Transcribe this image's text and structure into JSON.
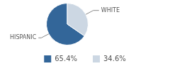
{
  "chart_data": {
    "type": "pie",
    "categories": [
      "HISPANIC",
      "WHITE"
    ],
    "values": [
      65.4,
      34.6
    ],
    "value_labels": [
      "65.4%",
      "34.6%"
    ],
    "colors": [
      "#336699",
      "#ccd7e3"
    ],
    "legend": "bottom"
  }
}
